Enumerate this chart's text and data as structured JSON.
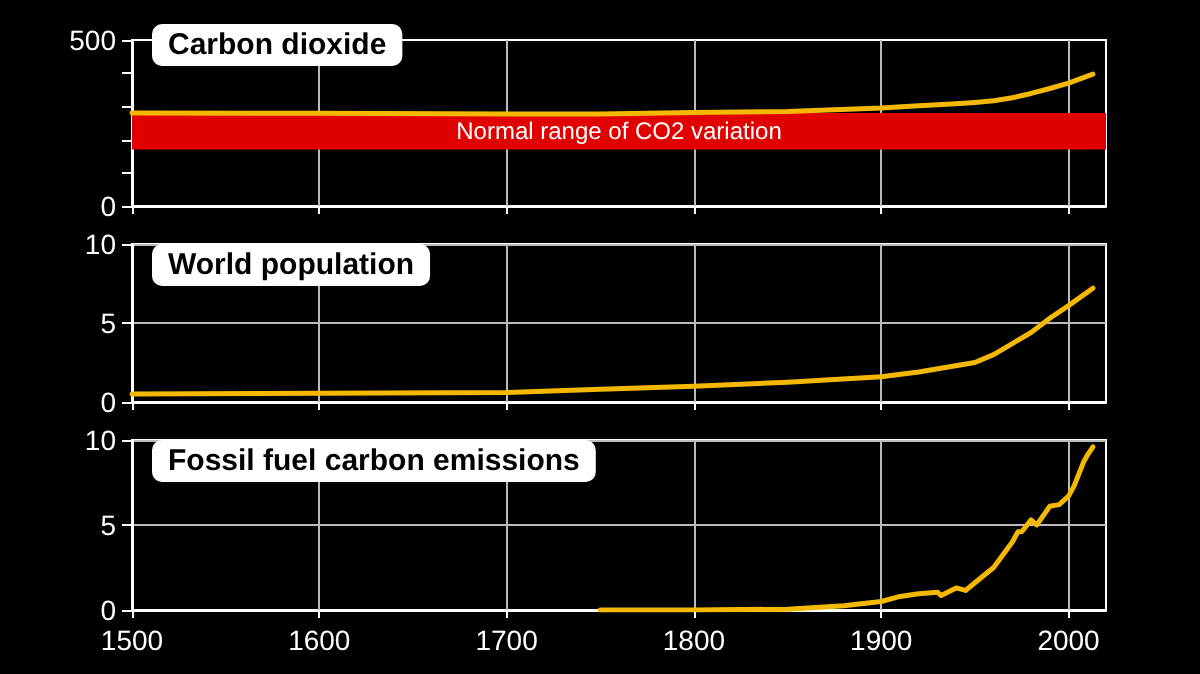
{
  "chart_data": [
    {
      "type": "line",
      "title": "Carbon dioxide",
      "x": [
        1500,
        1600,
        1700,
        1750,
        1800,
        1850,
        1900,
        1920,
        1940,
        1950,
        1960,
        1970,
        1980,
        1990,
        2000,
        2013
      ],
      "series": [
        {
          "color": "#f5b800",
          "values": [
            280,
            279,
            277,
            277,
            282,
            285,
            295,
            302,
            308,
            312,
            317,
            326,
            339,
            354,
            370,
            397
          ]
        }
      ],
      "xlim": [
        1500,
        2020
      ],
      "xticks": [
        1500,
        1600,
        1700,
        1800,
        1900,
        2000
      ],
      "ylim": [
        0,
        500
      ],
      "yticks": [
        0,
        {
          "value": 100,
          "label": null
        },
        {
          "value": 200,
          "label": null
        },
        {
          "value": 300,
          "label": null
        },
        {
          "value": 400,
          "label": null
        },
        500
      ],
      "bands": [
        {
          "axis": "y",
          "from": 170,
          "to": 280,
          "label": "Normal range of CO2 variation",
          "color": "#e00000"
        }
      ],
      "grid": "x",
      "tick_labels": "y",
      "line_style": "solid"
    },
    {
      "type": "line",
      "title": "World population",
      "x": [
        1500,
        1600,
        1700,
        1750,
        1800,
        1850,
        1900,
        1920,
        1950,
        1960,
        1970,
        1980,
        1990,
        2000,
        2013
      ],
      "series": [
        {
          "color": "#f5b800",
          "values": [
            0.5,
            0.55,
            0.6,
            0.8,
            1.0,
            1.25,
            1.6,
            1.9,
            2.5,
            3.0,
            3.7,
            4.4,
            5.3,
            6.1,
            7.2
          ]
        }
      ],
      "xlim": [
        1500,
        2020
      ],
      "xticks": [
        1500,
        1600,
        1700,
        1800,
        1900,
        2000
      ],
      "ylim": [
        0,
        10
      ],
      "yticks": [
        0,
        5,
        10
      ],
      "grid": true,
      "tick_labels": "y",
      "line_style": "solid"
    },
    {
      "type": "line",
      "title": "Fossil fuel carbon emissions",
      "x": [
        1750,
        1800,
        1850,
        1880,
        1900,
        1910,
        1920,
        1930,
        1932,
        1940,
        1945,
        1950,
        1960,
        1970,
        1973,
        1975,
        1980,
        1983,
        1990,
        1995,
        2000,
        2003,
        2008,
        2010,
        2013
      ],
      "series": [
        {
          "color": "#f5b800",
          "values": [
            0,
            0,
            0.05,
            0.25,
            0.5,
            0.8,
            0.95,
            1.05,
            0.85,
            1.3,
            1.15,
            1.6,
            2.5,
            4.0,
            4.6,
            4.6,
            5.3,
            5.0,
            6.1,
            6.2,
            6.7,
            7.3,
            8.7,
            9.1,
            9.6
          ]
        }
      ],
      "xlim": [
        1500,
        2020
      ],
      "xticks": [
        1500,
        1600,
        1700,
        1800,
        1900,
        2000
      ],
      "ylim": [
        0,
        10
      ],
      "yticks": [
        0,
        5,
        10
      ],
      "grid": true,
      "line_style": "solid"
    }
  ]
}
